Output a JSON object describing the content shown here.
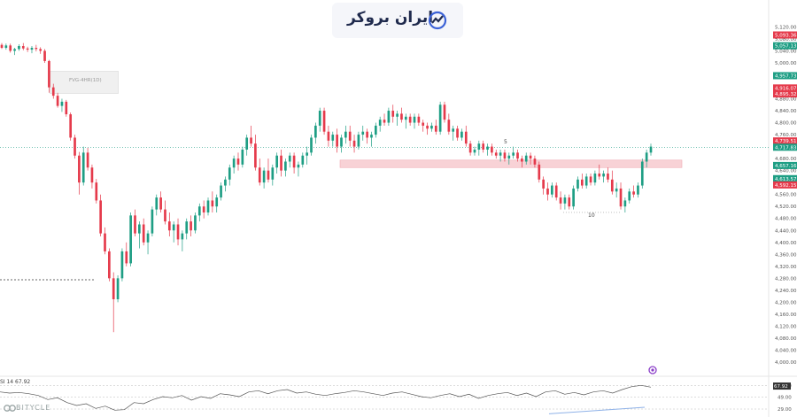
{
  "logo": {
    "text": "ایران بروکر"
  },
  "watermark": {
    "text": "BITYCLE"
  },
  "annotation": {
    "fvg_label": "FVG-4HR(1D)",
    "pivot_left": "5",
    "pivot_bottom": "10"
  },
  "rsi": {
    "label": "SI 14  67.92",
    "value_tag": "67.92",
    "axis_ticks": [
      "69.00",
      "49.00",
      "29.00"
    ]
  },
  "price_axis": {
    "ticks": [
      "5,120.00",
      "5,080.00",
      "5,040.00",
      "5,000.00",
      "4,960.00",
      "4,920.00",
      "4,880.00",
      "4,840.00",
      "4,800.00",
      "4,760.00",
      "4,720.00",
      "4,680.00",
      "4,640.00",
      "4,600.00",
      "4,560.00",
      "4,520.00",
      "4,480.00",
      "4,440.00",
      "4,400.00",
      "4,360.00",
      "4,320.00",
      "4,280.00",
      "4,240.00",
      "4,200.00",
      "4,160.00",
      "4,120.00",
      "4,080.00",
      "4,040.00",
      "4,000.00"
    ]
  },
  "price_tags": [
    {
      "text": "5,093.36",
      "price": 5093,
      "color": "#e53a4b"
    },
    {
      "text": "5,057.13",
      "price": 5057,
      "color": "#1e9e84"
    },
    {
      "text": "4,957.73",
      "price": 4957,
      "color": "#1e9e84"
    },
    {
      "text": "4,916.07",
      "price": 4916,
      "color": "#e53a4b"
    },
    {
      "text": "4,895.32",
      "price": 4896,
      "color": "#e53a4b"
    },
    {
      "text": "4,739.51",
      "price": 4739,
      "color": "#e53a4b"
    },
    {
      "text": "4,717.83",
      "price": 4718,
      "color": "#1e9e84"
    },
    {
      "text": "4,657.16",
      "price": 4657,
      "color": "#1e9e84"
    },
    {
      "text": "4,613.57",
      "price": 4613,
      "color": "#1e9e84"
    },
    {
      "text": "4,592.15",
      "price": 4592,
      "color": "#e53a4b"
    }
  ],
  "colors": {
    "bull": "#1e9e84",
    "bear": "#e53a4b",
    "zone": "#f7c7cc",
    "rsi_line": "#555555",
    "trend": "#8fb2e8"
  },
  "chart_data": {
    "type": "candlestick",
    "ylim": [
      4000,
      5130
    ],
    "current_price": 4718,
    "zone": {
      "low": 4650,
      "high": 4675
    },
    "dotted_support": 4275,
    "candles": [
      [
        5060,
        5066,
        5046,
        5050
      ],
      [
        5050,
        5064,
        5044,
        5058
      ],
      [
        5058,
        5064,
        5034,
        5040
      ],
      [
        5040,
        5050,
        5026,
        5046
      ],
      [
        5046,
        5062,
        5040,
        5056
      ],
      [
        5056,
        5066,
        5042,
        5048
      ],
      [
        5048,
        5054,
        5036,
        5044
      ],
      [
        5044,
        5056,
        5032,
        5050
      ],
      [
        5050,
        5060,
        5038,
        5046
      ],
      [
        5046,
        5052,
        5030,
        5040
      ],
      [
        5040,
        5046,
        5000,
        5006
      ],
      [
        5006,
        5010,
        4900,
        4918
      ],
      [
        4918,
        4930,
        4880,
        4890
      ],
      [
        4890,
        4900,
        4850,
        4856
      ],
      [
        4856,
        4880,
        4836,
        4870
      ],
      [
        4870,
        4876,
        4820,
        4828
      ],
      [
        4828,
        4834,
        4740,
        4750
      ],
      [
        4750,
        4760,
        4680,
        4690
      ],
      [
        4690,
        4702,
        4560,
        4600
      ],
      [
        4600,
        4720,
        4590,
        4700
      ],
      [
        4700,
        4716,
        4640,
        4650
      ],
      [
        4650,
        4660,
        4580,
        4600
      ],
      [
        4600,
        4612,
        4530,
        4540
      ],
      [
        4540,
        4560,
        4420,
        4430
      ],
      [
        4430,
        4450,
        4360,
        4370
      ],
      [
        4370,
        4380,
        4270,
        4280
      ],
      [
        4280,
        4300,
        4100,
        4210
      ],
      [
        4210,
        4290,
        4200,
        4280
      ],
      [
        4280,
        4380,
        4270,
        4370
      ],
      [
        4370,
        4400,
        4320,
        4330
      ],
      [
        4330,
        4500,
        4320,
        4490
      ],
      [
        4490,
        4510,
        4420,
        4430
      ],
      [
        4430,
        4470,
        4380,
        4460
      ],
      [
        4460,
        4480,
        4390,
        4400
      ],
      [
        4400,
        4440,
        4360,
        4430
      ],
      [
        4430,
        4520,
        4420,
        4510
      ],
      [
        4510,
        4560,
        4490,
        4550
      ],
      [
        4550,
        4570,
        4500,
        4510
      ],
      [
        4510,
        4540,
        4460,
        4470
      ],
      [
        4470,
        4500,
        4420,
        4440
      ],
      [
        4440,
        4470,
        4400,
        4460
      ],
      [
        4460,
        4480,
        4390,
        4410
      ],
      [
        4410,
        4440,
        4370,
        4430
      ],
      [
        4430,
        4480,
        4410,
        4470
      ],
      [
        4470,
        4490,
        4420,
        4440
      ],
      [
        4440,
        4500,
        4430,
        4490
      ],
      [
        4490,
        4530,
        4470,
        4520
      ],
      [
        4520,
        4540,
        4480,
        4500
      ],
      [
        4500,
        4550,
        4490,
        4540
      ],
      [
        4540,
        4570,
        4500,
        4520
      ],
      [
        4520,
        4560,
        4500,
        4550
      ],
      [
        4550,
        4600,
        4540,
        4590
      ],
      [
        4590,
        4620,
        4570,
        4610
      ],
      [
        4610,
        4660,
        4590,
        4650
      ],
      [
        4650,
        4690,
        4630,
        4680
      ],
      [
        4680,
        4700,
        4640,
        4660
      ],
      [
        4660,
        4720,
        4650,
        4710
      ],
      [
        4710,
        4760,
        4690,
        4750
      ],
      [
        4750,
        4790,
        4720,
        4730
      ],
      [
        4730,
        4760,
        4640,
        4650
      ],
      [
        4650,
        4680,
        4590,
        4600
      ],
      [
        4600,
        4650,
        4580,
        4640
      ],
      [
        4640,
        4680,
        4600,
        4610
      ],
      [
        4610,
        4660,
        4590,
        4650
      ],
      [
        4650,
        4700,
        4630,
        4690
      ],
      [
        4690,
        4710,
        4620,
        4640
      ],
      [
        4640,
        4680,
        4620,
        4670
      ],
      [
        4670,
        4700,
        4650,
        4690
      ],
      [
        4690,
        4700,
        4630,
        4650
      ],
      [
        4650,
        4670,
        4620,
        4660
      ],
      [
        4660,
        4700,
        4650,
        4690
      ],
      [
        4690,
        4720,
        4660,
        4700
      ],
      [
        4700,
        4760,
        4690,
        4750
      ],
      [
        4750,
        4800,
        4730,
        4790
      ],
      [
        4790,
        4850,
        4770,
        4840
      ],
      [
        4840,
        4850,
        4760,
        4770
      ],
      [
        4770,
        4790,
        4720,
        4740
      ],
      [
        4740,
        4770,
        4720,
        4760
      ],
      [
        4760,
        4780,
        4700,
        4720
      ],
      [
        4720,
        4760,
        4700,
        4750
      ],
      [
        4750,
        4790,
        4730,
        4770
      ],
      [
        4770,
        4790,
        4720,
        4740
      ],
      [
        4740,
        4760,
        4700,
        4720
      ],
      [
        4720,
        4770,
        4710,
        4760
      ],
      [
        4760,
        4790,
        4740,
        4770
      ],
      [
        4770,
        4780,
        4730,
        4750
      ],
      [
        4750,
        4770,
        4720,
        4760
      ],
      [
        4760,
        4800,
        4750,
        4790
      ],
      [
        4790,
        4820,
        4770,
        4810
      ],
      [
        4810,
        4830,
        4790,
        4800
      ],
      [
        4800,
        4850,
        4790,
        4840
      ],
      [
        4840,
        4860,
        4800,
        4820
      ],
      [
        4820,
        4840,
        4790,
        4830
      ],
      [
        4830,
        4850,
        4800,
        4810
      ],
      [
        4810,
        4830,
        4780,
        4820
      ],
      [
        4820,
        4830,
        4790,
        4800
      ],
      [
        4800,
        4830,
        4780,
        4820
      ],
      [
        4820,
        4830,
        4790,
        4800
      ],
      [
        4800,
        4810,
        4770,
        4790
      ],
      [
        4790,
        4800,
        4760,
        4780
      ],
      [
        4780,
        4800,
        4770,
        4790
      ],
      [
        4790,
        4810,
        4760,
        4770
      ],
      [
        4770,
        4870,
        4760,
        4860
      ],
      [
        4860,
        4870,
        4800,
        4810
      ],
      [
        4810,
        4830,
        4760,
        4770
      ],
      [
        4770,
        4790,
        4740,
        4780
      ],
      [
        4780,
        4790,
        4740,
        4750
      ],
      [
        4750,
        4780,
        4740,
        4770
      ],
      [
        4770,
        4790,
        4720,
        4730
      ],
      [
        4730,
        4740,
        4690,
        4700
      ],
      [
        4700,
        4720,
        4690,
        4710
      ],
      [
        4710,
        4740,
        4690,
        4730
      ],
      [
        4730,
        4740,
        4700,
        4710
      ],
      [
        4710,
        4730,
        4690,
        4720
      ],
      [
        4720,
        4730,
        4690,
        4700
      ],
      [
        4700,
        4710,
        4680,
        4690
      ],
      [
        4690,
        4710,
        4670,
        4700
      ],
      [
        4700,
        4710,
        4670,
        4680
      ],
      [
        4680,
        4700,
        4660,
        4690
      ],
      [
        4690,
        4720,
        4680,
        4700
      ],
      [
        4700,
        4710,
        4670,
        4680
      ],
      [
        4680,
        4690,
        4650,
        4670
      ],
      [
        4670,
        4700,
        4660,
        4690
      ],
      [
        4690,
        4700,
        4660,
        4680
      ],
      [
        4680,
        4690,
        4650,
        4660
      ],
      [
        4660,
        4670,
        4600,
        4610
      ],
      [
        4610,
        4620,
        4560,
        4580
      ],
      [
        4580,
        4600,
        4540,
        4560
      ],
      [
        4560,
        4600,
        4550,
        4590
      ],
      [
        4590,
        4600,
        4540,
        4550
      ],
      [
        4550,
        4570,
        4510,
        4530
      ],
      [
        4530,
        4560,
        4510,
        4550
      ],
      [
        4550,
        4560,
        4510,
        4520
      ],
      [
        4520,
        4590,
        4510,
        4580
      ],
      [
        4580,
        4620,
        4570,
        4610
      ],
      [
        4610,
        4630,
        4580,
        4590
      ],
      [
        4590,
        4630,
        4580,
        4620
      ],
      [
        4620,
        4630,
        4590,
        4600
      ],
      [
        4600,
        4640,
        4590,
        4630
      ],
      [
        4630,
        4660,
        4610,
        4620
      ],
      [
        4620,
        4640,
        4600,
        4630
      ],
      [
        4630,
        4650,
        4600,
        4610
      ],
      [
        4610,
        4640,
        4560,
        4570
      ],
      [
        4570,
        4600,
        4550,
        4580
      ],
      [
        4580,
        4600,
        4510,
        4520
      ],
      [
        4520,
        4550,
        4500,
        4540
      ],
      [
        4540,
        4580,
        4530,
        4570
      ],
      [
        4570,
        4590,
        4550,
        4560
      ],
      [
        4560,
        4600,
        4550,
        4590
      ],
      [
        4590,
        4680,
        4580,
        4670
      ],
      [
        4670,
        4710,
        4650,
        4700
      ],
      [
        4700,
        4730,
        4690,
        4720
      ]
    ],
    "rsi": [
      58,
      56,
      57,
      55,
      52,
      45,
      48,
      40,
      35,
      38,
      30,
      34,
      27,
      28,
      40,
      38,
      45,
      50,
      48,
      52,
      44,
      50,
      47,
      55,
      53,
      50,
      58,
      60,
      55,
      60,
      62,
      56,
      58,
      54,
      52,
      55,
      57,
      60,
      58,
      55,
      52,
      56,
      58,
      54,
      50,
      48,
      52,
      55,
      50,
      54,
      47,
      52,
      55,
      57,
      52,
      56,
      50,
      58,
      60,
      54,
      57,
      53,
      58,
      60,
      56,
      62,
      67,
      69,
      66
    ]
  }
}
